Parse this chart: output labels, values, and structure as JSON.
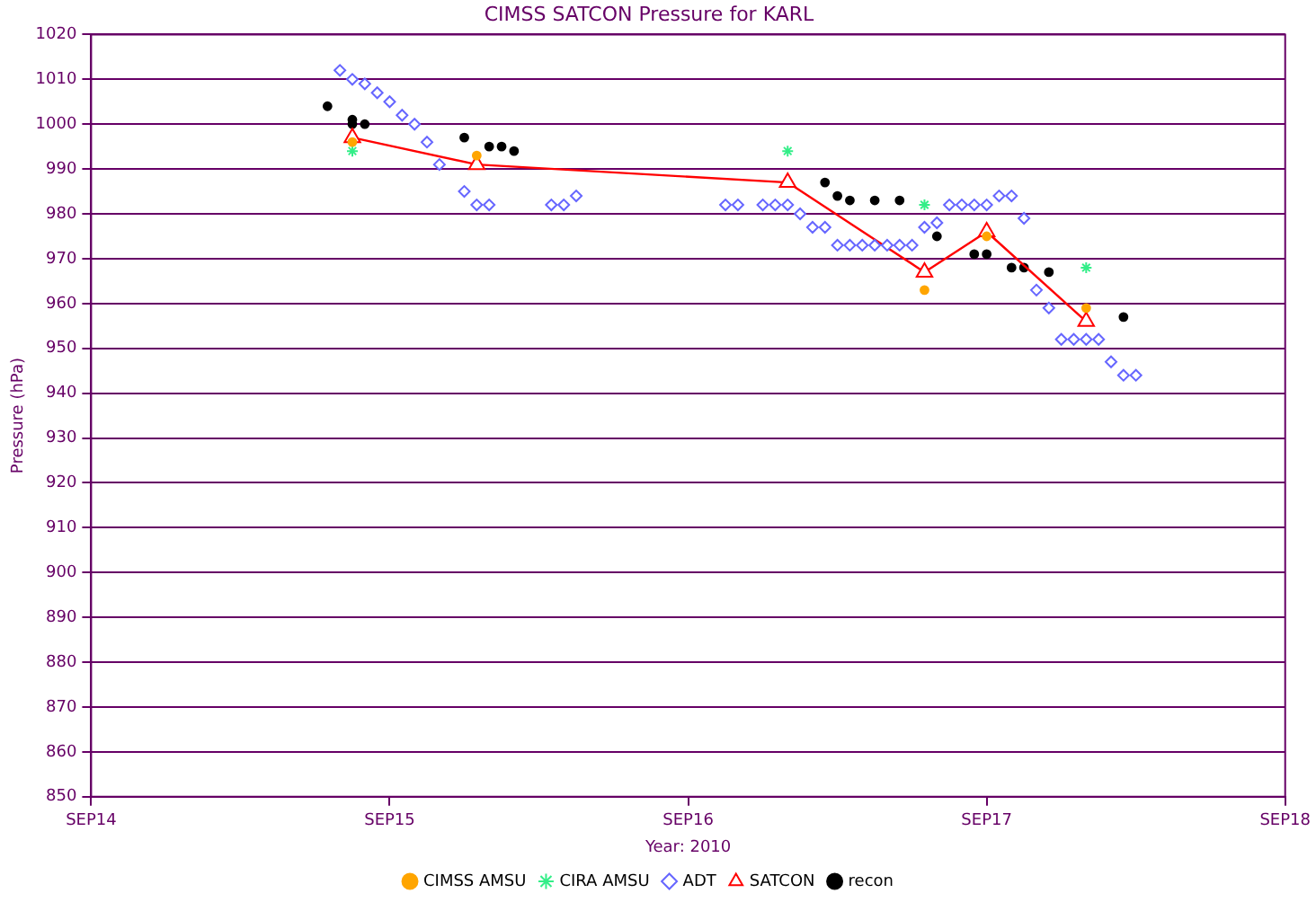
{
  "chart_data": {
    "type": "scatter",
    "title": "CIMSS SATCON Pressure for KARL",
    "xlabel": "Year: 2010",
    "ylabel": "Pressure (hPa)",
    "xlim": [
      "2010-09-14",
      "2010-09-18"
    ],
    "xticks": [
      {
        "value": "2010-09-14",
        "label": "SEP14"
      },
      {
        "value": "2010-09-15",
        "label": "SEP15"
      },
      {
        "value": "2010-09-16",
        "label": "SEP16"
      },
      {
        "value": "2010-09-17",
        "label": "SEP17"
      },
      {
        "value": "2010-09-18",
        "label": "SEP18"
      }
    ],
    "ylim": [
      850,
      1020
    ],
    "yticks": [
      850,
      860,
      870,
      880,
      890,
      900,
      910,
      920,
      930,
      940,
      950,
      960,
      970,
      980,
      990,
      1000,
      1010,
      1020
    ],
    "grid": "y",
    "legend": "bottom",
    "series": [
      {
        "name": "CIMSS AMSU",
        "type": "scatter",
        "marker": "circle",
        "color": "#ffa500",
        "x": [
          "2010-09-14T21:00",
          "2010-09-15T07:00",
          "2010-09-16T19:00",
          "2010-09-17T00:00",
          "2010-09-17T08:00"
        ],
        "values": [
          996,
          993,
          963,
          975,
          959
        ]
      },
      {
        "name": "CIRA AMSU",
        "type": "scatter",
        "marker": "cross",
        "color": "#33ee88",
        "x": [
          "2010-09-14T21:00",
          "2010-09-16T08:00",
          "2010-09-16T19:00",
          "2010-09-17T08:00"
        ],
        "values": [
          994,
          994,
          982,
          968
        ]
      },
      {
        "name": "ADT",
        "type": "scatter",
        "marker": "diamond",
        "color": "#6666ff",
        "x": [
          "2010-09-14T20:00",
          "2010-09-14T21:00",
          "2010-09-14T22:00",
          "2010-09-14T23:00",
          "2010-09-15T00:00",
          "2010-09-15T01:00",
          "2010-09-15T02:00",
          "2010-09-15T03:00",
          "2010-09-15T04:00",
          "2010-09-15T06:00",
          "2010-09-15T07:00",
          "2010-09-15T08:00",
          "2010-09-15T13:00",
          "2010-09-15T14:00",
          "2010-09-15T15:00",
          "2010-09-16T03:00",
          "2010-09-16T04:00",
          "2010-09-16T06:00",
          "2010-09-16T07:00",
          "2010-09-16T08:00",
          "2010-09-16T09:00",
          "2010-09-16T10:00",
          "2010-09-16T11:00",
          "2010-09-16T12:00",
          "2010-09-16T13:00",
          "2010-09-16T14:00",
          "2010-09-16T15:00",
          "2010-09-16T16:00",
          "2010-09-16T17:00",
          "2010-09-16T18:00",
          "2010-09-16T19:00",
          "2010-09-16T20:00",
          "2010-09-16T21:00",
          "2010-09-16T22:00",
          "2010-09-16T23:00",
          "2010-09-17T00:00",
          "2010-09-17T01:00",
          "2010-09-17T02:00",
          "2010-09-17T03:00",
          "2010-09-17T04:00",
          "2010-09-17T05:00",
          "2010-09-17T06:00",
          "2010-09-17T07:00",
          "2010-09-17T08:00",
          "2010-09-17T09:00",
          "2010-09-17T10:00",
          "2010-09-17T11:00",
          "2010-09-17T12:00"
        ],
        "values": [
          1012,
          1010,
          1009,
          1007,
          1005,
          1002,
          1000,
          996,
          991,
          985,
          982,
          982,
          982,
          982,
          984,
          982,
          982,
          982,
          982,
          982,
          980,
          977,
          977,
          973,
          973,
          973,
          973,
          973,
          973,
          973,
          977,
          978,
          982,
          982,
          982,
          982,
          984,
          984,
          979,
          963,
          959,
          952,
          952,
          952,
          952,
          947,
          944,
          944
        ]
      },
      {
        "name": "SATCON",
        "type": "line",
        "marker": "triangle",
        "color": "#ff0000",
        "x": [
          "2010-09-14T21:00",
          "2010-09-15T07:00",
          "2010-09-16T08:00",
          "2010-09-16T19:00",
          "2010-09-17T00:00",
          "2010-09-17T08:00"
        ],
        "values": [
          997,
          991,
          987,
          967,
          976,
          956
        ]
      },
      {
        "name": "recon",
        "type": "scatter",
        "marker": "circle",
        "color": "#000000",
        "x": [
          "2010-09-14T19:00",
          "2010-09-14T21:00",
          "2010-09-14T21:00",
          "2010-09-14T22:00",
          "2010-09-15T06:00",
          "2010-09-15T08:00",
          "2010-09-15T09:00",
          "2010-09-15T10:00",
          "2010-09-16T11:00",
          "2010-09-16T12:00",
          "2010-09-16T13:00",
          "2010-09-16T15:00",
          "2010-09-16T17:00",
          "2010-09-16T20:00",
          "2010-09-16T23:00",
          "2010-09-17T00:00",
          "2010-09-17T02:00",
          "2010-09-17T03:00",
          "2010-09-17T05:00",
          "2010-09-17T11:00"
        ],
        "values": [
          1004,
          1001,
          1000,
          1000,
          997,
          995,
          995,
          994,
          987,
          984,
          983,
          983,
          983,
          975,
          971,
          971,
          968,
          968,
          967,
          957
        ]
      }
    ]
  }
}
